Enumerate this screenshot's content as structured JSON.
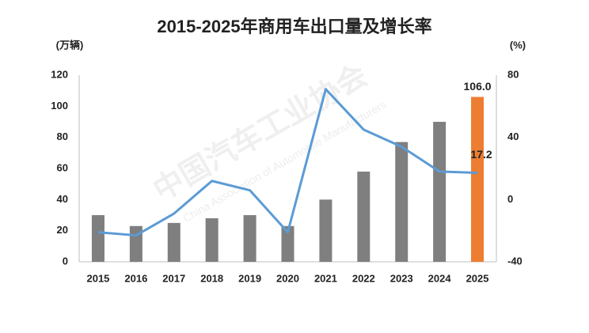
{
  "chart_data": {
    "type": "bar-line",
    "title": "2015-2025年商用车出口量及增长率",
    "y_label": "(万辆)",
    "y2_label": "(%)",
    "watermark": [
      "中国汽车工业协会",
      "China Association of Automobile Manufacturers"
    ],
    "categories": [
      "2015",
      "2016",
      "2017",
      "2018",
      "2019",
      "2020",
      "2021",
      "2022",
      "2023",
      "2024",
      "2025"
    ],
    "series": [
      {
        "type": "bar",
        "color": "#7f7f7f",
        "colors": [
          "#7f7f7f",
          "#7f7f7f",
          "#7f7f7f",
          "#7f7f7f",
          "#7f7f7f",
          "#7f7f7f",
          "#7f7f7f",
          "#7f7f7f",
          "#7f7f7f",
          "#7f7f7f",
          "#ed7d31"
        ],
        "values": [
          30,
          23,
          25,
          28,
          30,
          23,
          40,
          58,
          77,
          90,
          106
        ],
        "value_labels": [
          null,
          null,
          null,
          null,
          null,
          null,
          null,
          null,
          null,
          null,
          "106.0"
        ]
      },
      {
        "type": "line",
        "axis": "y2",
        "color": "#5b9bd5",
        "values": [
          -21,
          -23,
          -9,
          12,
          6,
          -21,
          71,
          45,
          34,
          18,
          17.2
        ],
        "value_labels": [
          null,
          null,
          null,
          null,
          null,
          null,
          null,
          null,
          null,
          null,
          "17.2"
        ]
      }
    ],
    "ylim": [
      0,
      120
    ],
    "yticks": [
      0,
      20,
      40,
      60,
      80,
      100,
      120
    ],
    "y2lim": [
      -40,
      80
    ],
    "y2ticks": [
      -40,
      0,
      40,
      80
    ],
    "grid": false
  }
}
